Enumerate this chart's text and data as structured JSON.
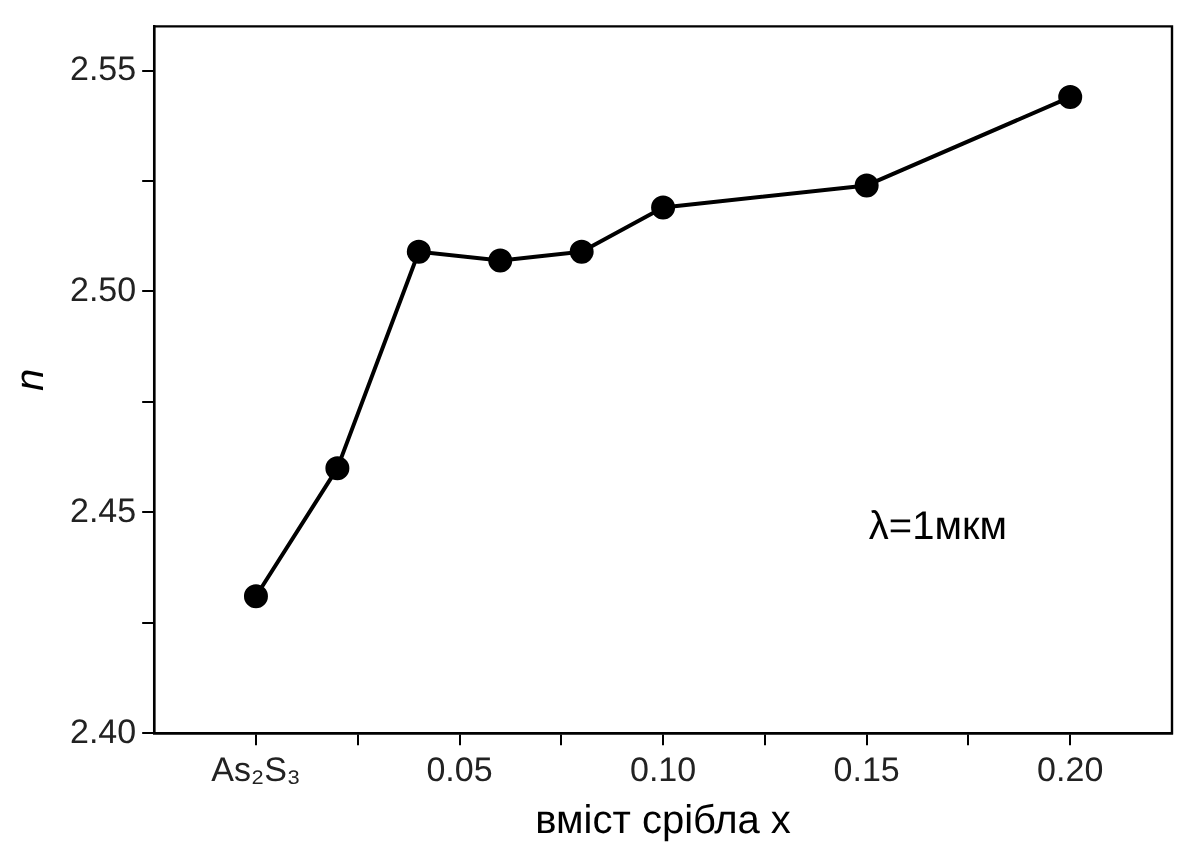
{
  "chart_data": {
    "type": "line",
    "xlabel": "вміст срібла x",
    "ylabel": "n",
    "x": [
      0,
      0.02,
      0.04,
      0.06,
      0.08,
      0.1,
      0.15,
      0.2
    ],
    "series": [
      {
        "color": "#000000",
        "values": [
          2.431,
          2.46,
          2.509,
          2.507,
          2.509,
          2.519,
          2.524,
          2.544
        ]
      }
    ],
    "xlim": [
      -0.025,
      0.225
    ],
    "xticks": [
      {
        "value": 0,
        "label": "As₂S₃"
      },
      {
        "value": 0.025,
        "label": null
      },
      {
        "value": 0.05,
        "label": "0.05"
      },
      {
        "value": 0.075,
        "label": null
      },
      {
        "value": 0.1,
        "label": "0.10"
      },
      {
        "value": 0.125,
        "label": null
      },
      {
        "value": 0.15,
        "label": "0.15"
      },
      {
        "value": 0.175,
        "label": null
      },
      {
        "value": 0.2,
        "label": "0.20"
      }
    ],
    "ylim": [
      2.4,
      2.56
    ],
    "yticks": [
      {
        "value": 2.4,
        "label": "2.40"
      },
      {
        "value": 2.425,
        "label": null
      },
      {
        "value": 2.45,
        "label": "2.45"
      },
      {
        "value": 2.475,
        "label": null
      },
      {
        "value": 2.5,
        "label": "2.50"
      },
      {
        "value": 2.525,
        "label": null
      },
      {
        "value": 2.55,
        "label": "2.55"
      }
    ],
    "annotations": [
      "λ=1мкм"
    ],
    "marker": "circle",
    "line_style": "solid",
    "grid": false,
    "legend": false
  }
}
